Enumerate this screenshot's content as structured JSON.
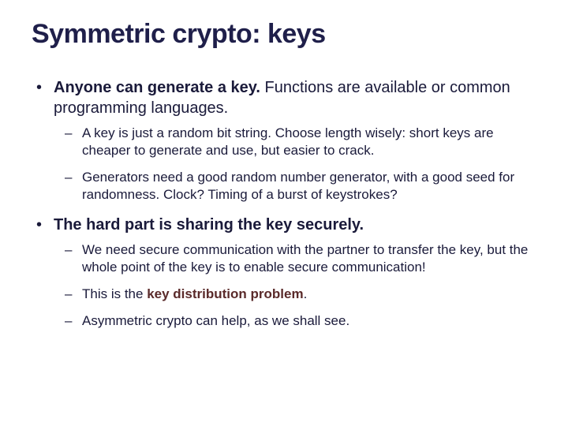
{
  "colors": {
    "background": "#ffffff",
    "title": "#1f1f4a",
    "body_text": "#1a1a3a",
    "emphasis": "#5a2a2a"
  },
  "typography": {
    "font_family": "Arial",
    "title_size_pt": 34,
    "level1_size_pt": 20,
    "level2_size_pt": 17,
    "title_weight": "bold"
  },
  "title": "Symmetric crypto: keys",
  "bullets": [
    {
      "lead": "Anyone can generate a key.",
      "rest": "  Functions are available or common programming languages.",
      "sub": [
        "A key is just a random bit string.  Choose length wisely: short keys are cheaper to generate and use, but easier to crack.",
        "Generators need a good random number generator, with a good seed for randomness.  Clock?  Timing of a burst of keystrokes?"
      ]
    },
    {
      "lead": "The hard part is sharing the key securely.",
      "rest": "",
      "sub": [
        "We need secure communication with the partner to transfer the key, but the whole point of the key is to enable secure communication!",
        {
          "prefix": "This is the ",
          "emph": "key distribution problem",
          "suffix": "."
        },
        "Asymmetric crypto can help, as we shall see."
      ]
    }
  ]
}
